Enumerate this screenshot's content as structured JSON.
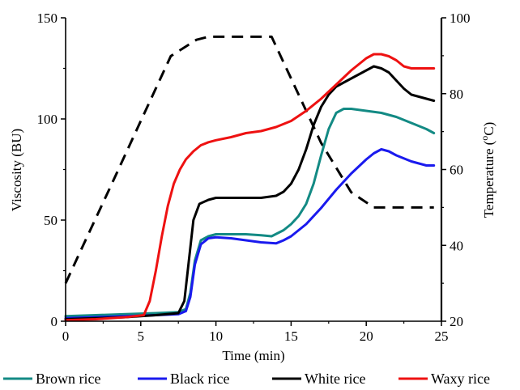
{
  "chart_data": {
    "type": "line",
    "xlabel": "Time (min)",
    "ylabel": "Viscosity (BU)",
    "y2label_main": "Temperature (",
    "y2label_sup": "o",
    "y2label_unit": "C)",
    "xlim": [
      0,
      25
    ],
    "ylim": [
      0,
      150
    ],
    "y2lim": [
      20,
      100
    ],
    "xticks": [
      "0",
      "5",
      "10",
      "15",
      "20",
      "25"
    ],
    "yticks": [
      "0",
      "50",
      "100",
      "150"
    ],
    "y2ticks": [
      "20",
      "40",
      "60",
      "80",
      "100"
    ],
    "grid": false,
    "legend_position": "bottom",
    "temperature_profile": {
      "axis": "right",
      "style": "dashed",
      "color": "#000000",
      "x": [
        0,
        1,
        3,
        5,
        7,
        8.7,
        9.5,
        13.7,
        15,
        17,
        19,
        20.5,
        23,
        24.5
      ],
      "y": [
        30,
        38.6,
        55.6,
        72.8,
        89.9,
        94.2,
        95,
        95,
        84,
        67,
        54,
        50,
        50,
        50
      ]
    },
    "series": [
      {
        "name": "Brown rice",
        "color": "#138a84",
        "x": [
          0,
          2,
          4,
          6,
          7.5,
          8,
          8.3,
          8.6,
          9,
          9.5,
          10,
          11,
          12,
          13,
          13.7,
          14.5,
          15,
          15.5,
          16,
          16.5,
          17,
          17.5,
          18,
          18.5,
          19,
          20,
          21,
          22,
          23,
          24,
          24.5
        ],
        "y": [
          2.5,
          3,
          3.5,
          4,
          4.5,
          6,
          14,
          30,
          40,
          42,
          43,
          43,
          43,
          42.5,
          42,
          45,
          48,
          52,
          58,
          68,
          82,
          95,
          103,
          105,
          105,
          104,
          103,
          101,
          98,
          95,
          93
        ]
      },
      {
        "name": "Black rice",
        "color": "#1a1aee",
        "x": [
          0,
          2,
          4,
          6,
          7.5,
          8,
          8.3,
          8.6,
          9,
          9.5,
          10,
          11,
          12,
          13,
          14,
          14.5,
          15,
          16,
          17,
          18,
          19,
          20,
          20.5,
          21,
          21.5,
          22,
          23,
          24,
          24.5
        ],
        "y": [
          1.5,
          2,
          2.5,
          3,
          3.5,
          5,
          12,
          28,
          38,
          41,
          41.5,
          41,
          40,
          39,
          38.5,
          40,
          42,
          48,
          56,
          65,
          73,
          80,
          83,
          85,
          84,
          82,
          79,
          77,
          77
        ]
      },
      {
        "name": "White rice",
        "color": "#000000",
        "x": [
          0,
          2,
          4,
          6,
          7.5,
          7.9,
          8.2,
          8.5,
          8.9,
          9.5,
          10,
          11,
          12,
          13,
          14,
          14.5,
          15,
          15.5,
          16,
          16.5,
          17,
          17.5,
          18,
          19,
          20,
          20.5,
          21,
          21.5,
          22,
          22.5,
          23,
          24,
          24.5
        ],
        "y": [
          1,
          1.5,
          2,
          3,
          4,
          10,
          30,
          50,
          58,
          60,
          61,
          61,
          61,
          61,
          62,
          64,
          68,
          75,
          85,
          97,
          106,
          112,
          116,
          120,
          124,
          126,
          125,
          123,
          119,
          115,
          112,
          110,
          109
        ]
      },
      {
        "name": "Waxy rice",
        "color": "#ee1111",
        "x": [
          0,
          2,
          4,
          5.2,
          5.6,
          6,
          6.4,
          6.8,
          7.2,
          7.6,
          8,
          8.5,
          9,
          9.5,
          10,
          11,
          12,
          13,
          14,
          15,
          16,
          17,
          18,
          19,
          20,
          20.5,
          21,
          21.5,
          22,
          22.5,
          23,
          24,
          24.5
        ],
        "y": [
          0.5,
          1,
          2,
          3,
          10,
          25,
          42,
          57,
          68,
          75,
          80,
          84,
          87,
          88.5,
          89.5,
          91,
          93,
          94,
          96,
          99,
          104,
          110,
          117,
          124,
          130,
          132,
          132,
          131,
          129,
          126,
          125,
          125,
          125
        ]
      }
    ]
  }
}
